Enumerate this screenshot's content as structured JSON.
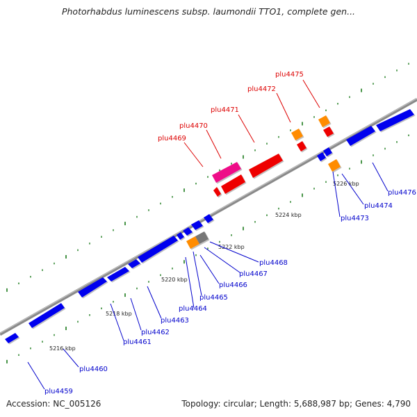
{
  "title": "Photorhabdus luminescens subsp. laumondii TTO1, complete gen...",
  "footer": {
    "accession": "Accession: NC_005126",
    "summary": "Topology: circular; Length: 5,688,987 bp; Genes: 4,790"
  },
  "colors": {
    "forward_gene": "#0000ee",
    "reverse_gene": "#ee0000",
    "label_forward": "#0000cc",
    "label_reverse": "#dd0000",
    "orange_feature": "#ff8c00",
    "pink_feature": "#ee1188",
    "grey_feature": "#777777",
    "backbone": "#8a8a8a",
    "tick": "#1a7a1a"
  },
  "scale_labels": [
    "5216 kbp",
    "5218 kbp",
    "5220 kbp",
    "5222 kbp",
    "5224 kbp",
    "5226 kbp"
  ],
  "forward_genes": [
    "plu4459",
    "plu4460",
    "plu4461",
    "plu4462",
    "plu4463",
    "plu4464",
    "plu4465",
    "plu4466",
    "plu4467",
    "plu4468",
    "plu4473",
    "plu4474",
    "plu4476"
  ],
  "reverse_genes": [
    "plu4469",
    "plu4470",
    "plu4471",
    "plu4472",
    "plu4475"
  ]
}
